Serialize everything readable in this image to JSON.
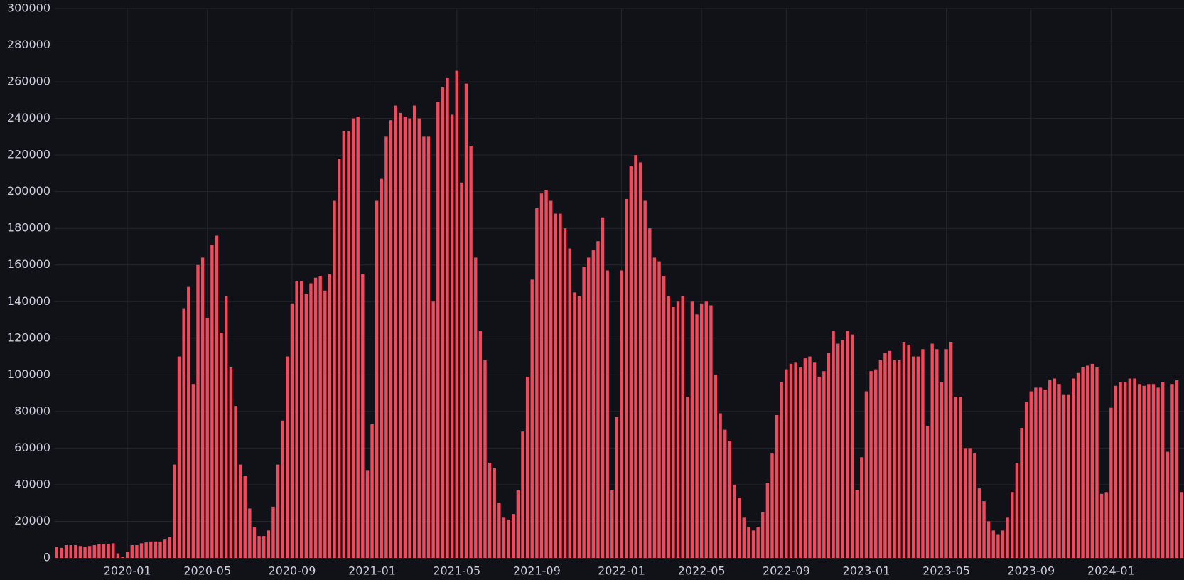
{
  "chart_data": {
    "type": "bar",
    "categories": [
      null,
      null,
      null,
      null,
      null,
      null,
      null,
      null,
      null,
      null,
      null,
      null,
      null,
      null,
      null,
      "2020-01",
      null,
      null,
      null,
      null,
      null,
      null,
      null,
      null,
      null,
      null,
      null,
      null,
      null,
      null,
      null,
      null,
      "2020-05",
      null,
      null,
      null,
      null,
      null,
      null,
      null,
      null,
      null,
      null,
      null,
      null,
      null,
      null,
      null,
      null,
      null,
      "2020-09",
      null,
      null,
      null,
      null,
      null,
      null,
      null,
      null,
      null,
      null,
      null,
      null,
      null,
      null,
      null,
      null,
      "2021-01",
      null,
      null,
      null,
      null,
      null,
      null,
      null,
      null,
      null,
      null,
      null,
      null,
      null,
      null,
      null,
      null,
      null,
      "2021-05",
      null,
      null,
      null,
      null,
      null,
      null,
      null,
      null,
      null,
      null,
      null,
      null,
      null,
      null,
      null,
      null,
      "2021-09",
      null,
      null,
      null,
      null,
      null,
      null,
      null,
      null,
      null,
      null,
      null,
      null,
      null,
      null,
      null,
      null,
      null,
      "2022-01",
      null,
      null,
      null,
      null,
      null,
      null,
      null,
      null,
      null,
      null,
      null,
      null,
      null,
      null,
      null,
      null,
      "2022-05",
      null,
      null,
      null,
      null,
      null,
      null,
      null,
      null,
      null,
      null,
      null,
      null,
      null,
      null,
      null,
      null,
      null,
      "2022-09",
      null,
      null,
      null,
      null,
      null,
      null,
      null,
      null,
      null,
      null,
      null,
      null,
      null,
      null,
      null,
      null,
      "2023-01",
      null,
      null,
      null,
      null,
      null,
      null,
      null,
      null,
      null,
      null,
      null,
      null,
      null,
      null,
      null,
      null,
      "2023-05",
      null,
      null,
      null,
      null,
      null,
      null,
      null,
      null,
      null,
      null,
      null,
      null,
      null,
      null,
      null,
      null,
      null,
      "2023-09",
      null,
      null,
      null,
      null,
      null,
      null,
      null,
      null,
      null,
      null,
      null,
      null,
      null,
      null,
      null,
      null,
      "2024-01",
      null,
      null,
      null,
      null,
      null,
      null,
      null,
      null,
      null,
      null,
      null,
      null,
      null,
      null,
      null
    ],
    "values": [
      6000,
      5500,
      7000,
      7000,
      7000,
      6500,
      6000,
      6500,
      7000,
      7500,
      7500,
      7500,
      8000,
      2500,
      500,
      3500,
      7000,
      7000,
      8000,
      8500,
      9000,
      9000,
      9000,
      10000,
      11500,
      51000,
      110000,
      136000,
      148000,
      95000,
      160000,
      164000,
      131000,
      171000,
      176000,
      123000,
      143000,
      104000,
      83000,
      51000,
      45000,
      27000,
      17000,
      12000,
      12000,
      15000,
      28000,
      51000,
      75000,
      110000,
      139000,
      151000,
      151000,
      144000,
      150000,
      153000,
      154000,
      146000,
      155000,
      195000,
      218000,
      233000,
      233000,
      240000,
      241000,
      155000,
      48000,
      73000,
      195000,
      207000,
      230000,
      239000,
      247000,
      243000,
      241000,
      240000,
      247000,
      240000,
      230000,
      230000,
      140000,
      249000,
      257000,
      262000,
      242000,
      266000,
      205000,
      259000,
      225000,
      164000,
      124000,
      108000,
      52000,
      49000,
      30000,
      22000,
      21000,
      24000,
      37000,
      69000,
      99000,
      152000,
      191000,
      199000,
      201000,
      195000,
      188000,
      188000,
      180000,
      169000,
      145000,
      143000,
      159000,
      164000,
      168000,
      173000,
      186000,
      157000,
      37000,
      77000,
      157000,
      196000,
      214000,
      220000,
      216000,
      195000,
      180000,
      164000,
      162000,
      154000,
      143000,
      137000,
      140000,
      143000,
      88000,
      140000,
      133000,
      139000,
      140000,
      138000,
      100000,
      79000,
      70000,
      64000,
      40000,
      33000,
      22000,
      17000,
      15000,
      17000,
      25000,
      41000,
      57000,
      78000,
      96000,
      103000,
      106000,
      107000,
      104000,
      109000,
      110000,
      107000,
      99000,
      102000,
      112000,
      124000,
      117000,
      119000,
      124000,
      122000,
      37000,
      55000,
      91000,
      102000,
      103000,
      108000,
      112000,
      113000,
      108000,
      108000,
      118000,
      116000,
      110000,
      110000,
      114000,
      72000,
      117000,
      114000,
      96000,
      114000,
      118000,
      88000,
      88000,
      60000,
      60000,
      57000,
      38000,
      31000,
      20000,
      15000,
      13000,
      15000,
      22000,
      36000,
      52000,
      71000,
      85000,
      91000,
      93000,
      93000,
      92000,
      97000,
      98000,
      95000,
      89000,
      89000,
      98000,
      101000,
      104000,
      105000,
      106000,
      104000,
      35000,
      36000,
      82000,
      94000,
      96000,
      96000,
      98000,
      98000,
      95000,
      94000,
      95000,
      95000,
      93000,
      96000,
      58000,
      95000,
      97000,
      36000
    ],
    "color": "#f2495c",
    "ylim": [
      0,
      300000
    ],
    "yticks": [
      0,
      20000,
      40000,
      60000,
      80000,
      100000,
      120000,
      140000,
      160000,
      180000,
      200000,
      220000,
      240000,
      260000,
      280000,
      300000
    ],
    "grid": true
  }
}
